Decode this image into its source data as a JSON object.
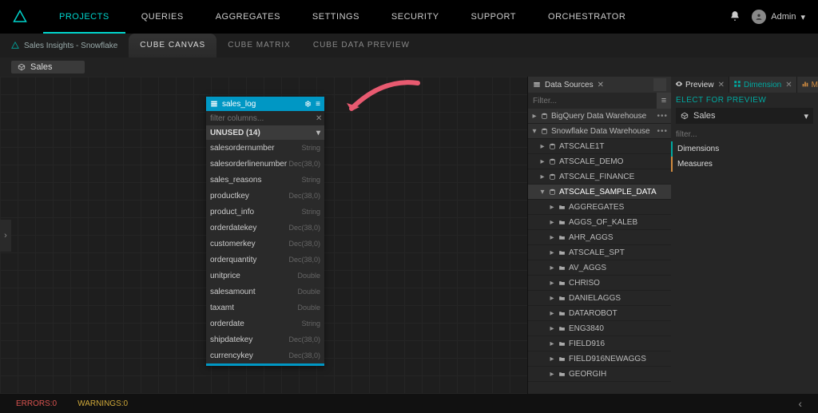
{
  "colors": {
    "accent_teal": "#00d4cc",
    "panel_blue": "#0097c4",
    "arrow_pink": "#e85a70",
    "error": "#d9534f",
    "warning": "#d0a93a",
    "measure_orange": "#d08b40"
  },
  "nav": {
    "items": [
      "PROJECTS",
      "QUERIES",
      "AGGREGATES",
      "SETTINGS",
      "SECURITY",
      "SUPPORT",
      "ORCHESTRATOR"
    ],
    "active_index": 0,
    "user_label": "Admin"
  },
  "breadcrumb": {
    "project": "Sales Insights - Snowflake"
  },
  "tabs": {
    "items": [
      "CUBE CANVAS",
      "CUBE MATRIX",
      "CUBE DATA PREVIEW"
    ],
    "active_index": 0
  },
  "cube_chip": {
    "label": "Sales"
  },
  "table_panel": {
    "title": "sales_log",
    "filter_placeholder": "filter columns...",
    "section_label": "UNUSED (14)",
    "columns": [
      {
        "name": "salesordernumber",
        "type": "String"
      },
      {
        "name": "salesorderlinenumber",
        "type": "Dec(38,0)"
      },
      {
        "name": "sales_reasons",
        "type": "String"
      },
      {
        "name": "productkey",
        "type": "Dec(38,0)"
      },
      {
        "name": "product_info",
        "type": "String"
      },
      {
        "name": "orderdatekey",
        "type": "Dec(38,0)"
      },
      {
        "name": "customerkey",
        "type": "Dec(38,0)"
      },
      {
        "name": "orderquantity",
        "type": "Dec(38,0)"
      },
      {
        "name": "unitprice",
        "type": "Double"
      },
      {
        "name": "salesamount",
        "type": "Double"
      },
      {
        "name": "taxamt",
        "type": "Double"
      },
      {
        "name": "orderdate",
        "type": "String"
      },
      {
        "name": "shipdatekey",
        "type": "Dec(38,0)"
      },
      {
        "name": "currencykey",
        "type": "Dec(38,0)"
      }
    ]
  },
  "data_sources": {
    "title": "Data Sources",
    "filter_placeholder": "Filter...",
    "connections": [
      {
        "label": "BigQuery Data Warehouse",
        "expanded": false
      },
      {
        "label": "Snowflake Data Warehouse",
        "expanded": true,
        "children": [
          {
            "type": "db",
            "label": "ATSCALE1T"
          },
          {
            "type": "db",
            "label": "ATSCALE_DEMO"
          },
          {
            "type": "db",
            "label": "ATSCALE_FINANCE"
          },
          {
            "type": "db",
            "label": "ATSCALE_SAMPLE_DATA",
            "expanded": true,
            "children": [
              {
                "type": "folder",
                "label": "AGGREGATES"
              },
              {
                "type": "folder",
                "label": "AGGS_OF_KALEB"
              },
              {
                "type": "folder",
                "label": "AHR_AGGS"
              },
              {
                "type": "folder",
                "label": "ATSCALE_SPT"
              },
              {
                "type": "folder",
                "label": "AV_AGGS"
              },
              {
                "type": "folder",
                "label": "CHRISO"
              },
              {
                "type": "folder",
                "label": "DANIELAGGS"
              },
              {
                "type": "folder",
                "label": "DATAROBOT"
              },
              {
                "type": "folder",
                "label": "ENG3840"
              },
              {
                "type": "folder",
                "label": "FIELD916"
              },
              {
                "type": "folder",
                "label": "FIELD916NEWAGGS"
              },
              {
                "type": "folder",
                "label": "GEORGIH"
              }
            ]
          }
        ]
      }
    ]
  },
  "preview": {
    "tabs": [
      {
        "label": "Preview",
        "icon": "eye",
        "color": "#ccc"
      },
      {
        "label": "Dimension",
        "icon": "grid",
        "color": "#00a8a0"
      },
      {
        "label": "Measures",
        "icon": "bars",
        "color": "#d08b40"
      }
    ],
    "active_tab": 0,
    "select_label": "ELECT FOR PREVIEW",
    "selected_cube": "Sales",
    "filter_placeholder": "filter...",
    "dimensions_label": "Dimensions",
    "measures_label": "Measures"
  },
  "footer": {
    "errors_label": "ERRORS:0",
    "warnings_label": "WARNINGS:0"
  }
}
